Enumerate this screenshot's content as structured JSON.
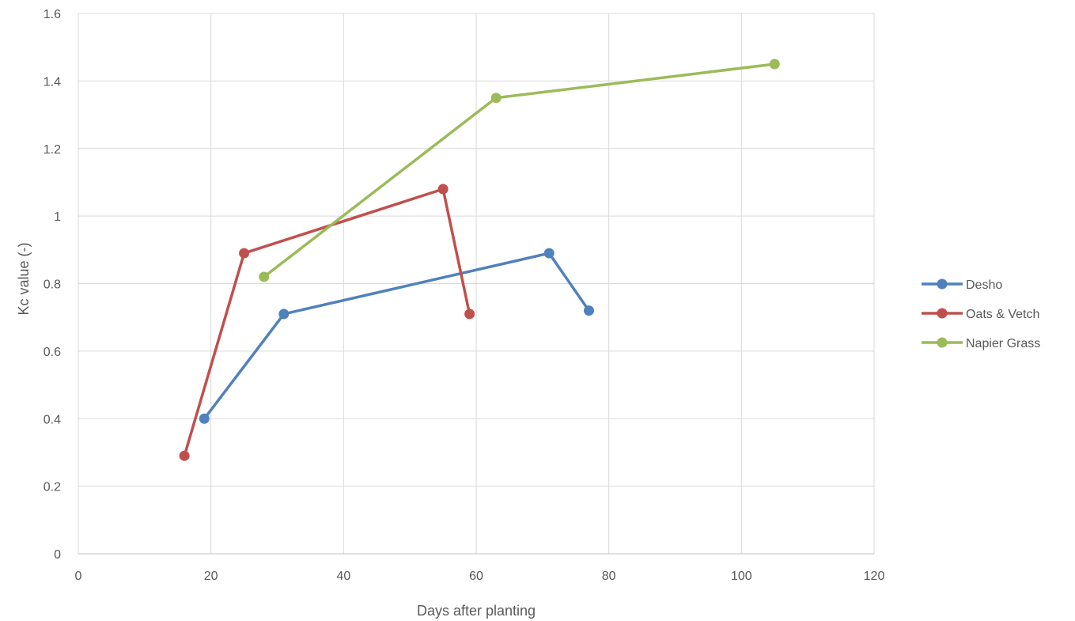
{
  "chart_data": {
    "type": "line",
    "title": "",
    "xlabel": "Days after planting",
    "ylabel": "Kc value (-)",
    "xlim": [
      0,
      120
    ],
    "ylim": [
      0,
      1.6
    ],
    "x_ticks": [
      "0",
      "20",
      "40",
      "60",
      "80",
      "100",
      "120"
    ],
    "y_ticks": [
      "0",
      "0.2",
      "0.4",
      "0.6",
      "0.8",
      "1",
      "1.2",
      "1.4",
      "1.6"
    ],
    "grid": true,
    "legend_position": "right",
    "series": [
      {
        "name": "Desho",
        "color": "#4f81bd",
        "points": [
          [
            19,
            0.4
          ],
          [
            31,
            0.71
          ],
          [
            71,
            0.89
          ],
          [
            77,
            0.72
          ]
        ]
      },
      {
        "name": "Oats & Vetch",
        "color": "#c0504d",
        "points": [
          [
            16,
            0.29
          ],
          [
            25,
            0.89
          ],
          [
            55,
            1.08
          ],
          [
            59,
            0.71
          ]
        ]
      },
      {
        "name": "Napier Grass",
        "color": "#9bbb59",
        "points": [
          [
            28,
            0.82
          ],
          [
            63,
            1.35
          ],
          [
            105,
            1.45
          ]
        ]
      }
    ]
  }
}
